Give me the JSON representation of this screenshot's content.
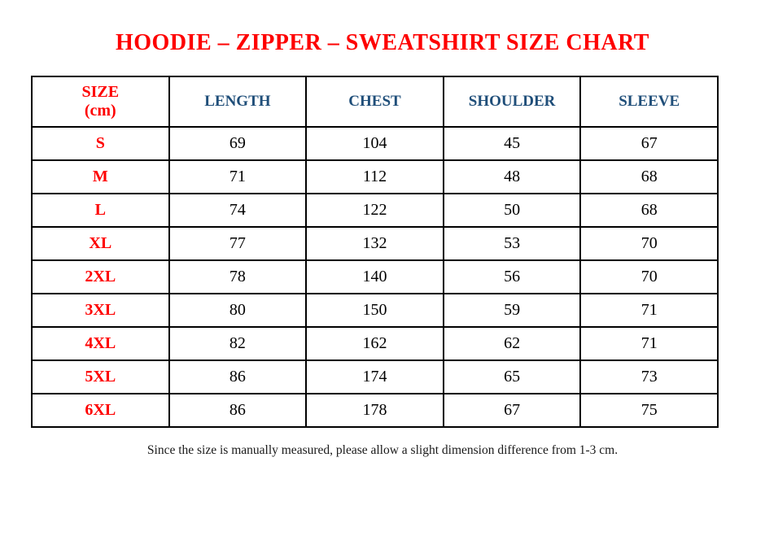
{
  "page": {
    "stray_dot": ".",
    "title": "HOODIE – ZIPPER – SWEATSHIRT SIZE CHART",
    "footnote": "Since the size is manually measured, please allow a slight dimension difference from 1-3 cm."
  },
  "colors": {
    "title_red": "#fe0000",
    "size_label_red": "#fe0000",
    "header_blue": "#1f4e79",
    "value_black": "#000000",
    "border_black": "#000000",
    "background": "#ffffff"
  },
  "table": {
    "header": {
      "size_line1": "SIZE",
      "size_line2": "(cm)",
      "measures": [
        "LENGTH",
        "CHEST",
        "SHOULDER",
        "SLEEVE"
      ]
    },
    "rows": [
      {
        "size": "S",
        "values": [
          "69",
          "104",
          "45",
          "67"
        ]
      },
      {
        "size": "M",
        "values": [
          "71",
          "112",
          "48",
          "68"
        ]
      },
      {
        "size": "L",
        "values": [
          "74",
          "122",
          "50",
          "68"
        ]
      },
      {
        "size": "XL",
        "values": [
          "77",
          "132",
          "53",
          "70"
        ]
      },
      {
        "size": "2XL",
        "values": [
          "78",
          "140",
          "56",
          "70"
        ]
      },
      {
        "size": "3XL",
        "values": [
          "80",
          "150",
          "59",
          "71"
        ]
      },
      {
        "size": "4XL",
        "values": [
          "82",
          "162",
          "62",
          "71"
        ]
      },
      {
        "size": "5XL",
        "values": [
          "86",
          "174",
          "65",
          "73"
        ]
      },
      {
        "size": "6XL",
        "values": [
          "86",
          "178",
          "67",
          "75"
        ]
      }
    ]
  }
}
